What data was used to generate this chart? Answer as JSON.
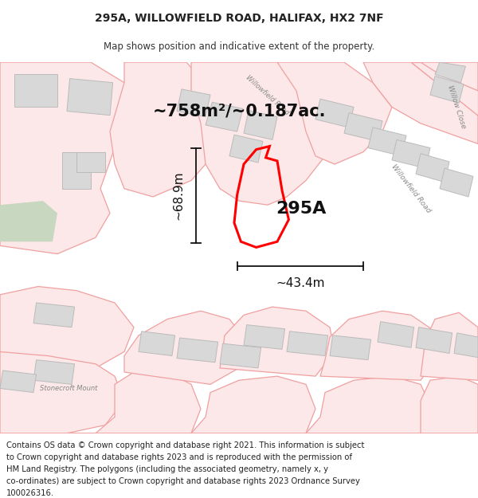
{
  "title_line1": "295A, WILLOWFIELD ROAD, HALIFAX, HX2 7NF",
  "title_line2": "Map shows position and indicative extent of the property.",
  "area_text": "~758m²/~0.187ac.",
  "label_295A": "295A",
  "dim_height": "~68.9m",
  "dim_width": "~43.4m",
  "footer_lines": [
    "Contains OS data © Crown copyright and database right 2021. This information is subject",
    "to Crown copyright and database rights 2023 and is reproduced with the permission of",
    "HM Land Registry. The polygons (including the associated geometry, namely x, y",
    "co-ordinates) are subject to Crown copyright and database rights 2023 Ordnance Survey",
    "100026316."
  ],
  "bg_color": "#ffffff",
  "map_bg": "#ffffff",
  "road_line_color": "#f0a0a0",
  "road_fill_color": "#fce8e8",
  "building_fill": "#d8d8d8",
  "building_edge": "#bbbbbb",
  "plot_color": "#ff0000",
  "dim_color": "#111111",
  "label_color": "#888888",
  "green_fill": "#c8d8c0",
  "title_fs": 10,
  "subtitle_fs": 8.5,
  "area_fs": 15,
  "label_fs": 16,
  "dim_fs": 11,
  "street_fs": 6.5,
  "footer_fs": 7.2
}
